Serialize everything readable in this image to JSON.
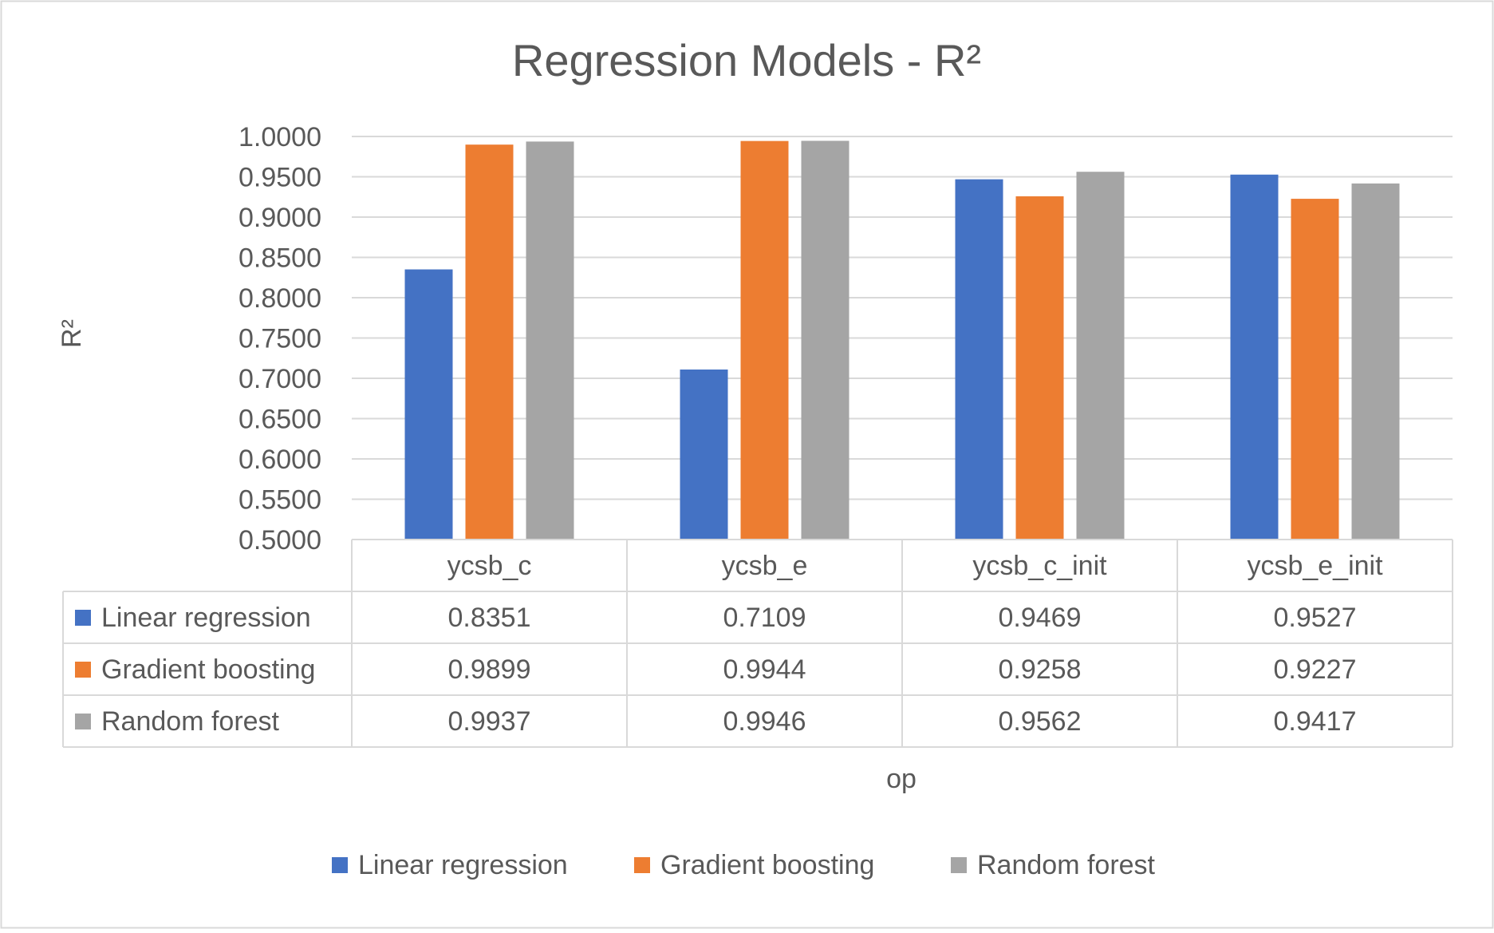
{
  "chart_data": {
    "type": "bar",
    "title": "Regression Models - R²",
    "xlabel": "op",
    "ylabel": "R²",
    "ylim": [
      0.5,
      1.0
    ],
    "ytick_step": 0.05,
    "ytick_labels": [
      "0.5000",
      "0.5500",
      "0.6000",
      "0.6500",
      "0.7000",
      "0.7500",
      "0.8000",
      "0.8500",
      "0.9000",
      "0.9500",
      "1.0000"
    ],
    "categories": [
      "ycsb_c",
      "ycsb_e",
      "ycsb_c_init",
      "ycsb_e_init"
    ],
    "series": [
      {
        "name": "Linear regression",
        "color": "#4472C4",
        "values": [
          0.8351,
          0.7109,
          0.9469,
          0.9527
        ],
        "labels": [
          "0.8351",
          "0.7109",
          "0.9469",
          "0.9527"
        ]
      },
      {
        "name": "Gradient boosting",
        "color": "#ED7D31",
        "values": [
          0.9899,
          0.9944,
          0.9258,
          0.9227
        ],
        "labels": [
          "0.9899",
          "0.9944",
          "0.9258",
          "0.9227"
        ]
      },
      {
        "name": "Random forest",
        "color": "#A5A5A5",
        "values": [
          0.9937,
          0.9946,
          0.9562,
          0.9417
        ],
        "labels": [
          "0.9937",
          "0.9946",
          "0.9562",
          "0.9417"
        ]
      }
    ],
    "grid": true,
    "data_table": true,
    "legend_position": "bottom"
  }
}
